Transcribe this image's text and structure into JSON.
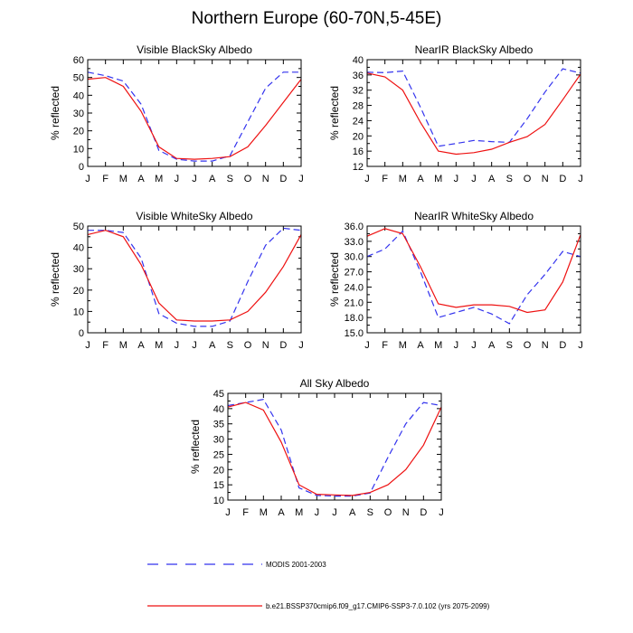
{
  "title": "Northern Europe (60-70N,5-45E)",
  "colors": {
    "modis": "#3333ee",
    "model": "#ee1111",
    "axis": "#000000"
  },
  "legend": {
    "modis": "MODIS 2001-2003",
    "model": "b.e21.BSSP370cmip6.f09_g17.CMIP6-SSP3-7.0.102 (yrs 2075-2099)"
  },
  "chart_data": [
    {
      "type": "line",
      "title": "Visible BlackSky Albedo",
      "ylabel": "% reflected",
      "categories": [
        "J",
        "F",
        "M",
        "A",
        "M",
        "J",
        "J",
        "A",
        "S",
        "O",
        "N",
        "D",
        "J"
      ],
      "ylim": [
        0,
        60
      ],
      "yticks": [
        "0",
        "10",
        "20",
        "30",
        "40",
        "50",
        "60"
      ],
      "series": [
        {
          "name": "MODIS 2001-2003",
          "style": "dashed",
          "values": [
            53,
            51,
            48,
            35,
            9,
            4,
            3,
            3,
            6,
            25,
            44,
            53,
            53
          ]
        },
        {
          "name": "b.e21.BSSP370cmip6.f09_g17.CMIP6-SSP3-7.0.102 (yrs 2075-2099)",
          "style": "solid",
          "values": [
            49,
            50,
            45,
            31,
            11,
            4.5,
            4,
            4.5,
            5.5,
            11,
            23,
            36,
            49
          ]
        }
      ]
    },
    {
      "type": "line",
      "title": "NearIR BlackSky Albedo",
      "ylabel": "% reflected",
      "categories": [
        "J",
        "F",
        "M",
        "A",
        "M",
        "J",
        "J",
        "A",
        "S",
        "O",
        "N",
        "D",
        "J"
      ],
      "ylim": [
        12,
        40
      ],
      "yticks": [
        "12",
        "16",
        "20",
        "24",
        "28",
        "32",
        "36",
        "40"
      ],
      "series": [
        {
          "name": "MODIS 2001-2003",
          "style": "dashed",
          "values": [
            36.7,
            36.6,
            37.0,
            27.5,
            17.3,
            18.0,
            18.8,
            18.5,
            18.3,
            24.5,
            31.5,
            37.6,
            36.5
          ]
        },
        {
          "name": "b.e21.BSSP370cmip6.f09_g17.CMIP6-SSP3-7.0.102 (yrs 2075-2099)",
          "style": "solid",
          "values": [
            36.5,
            35.5,
            32.0,
            23.5,
            16.0,
            15.2,
            15.6,
            16.5,
            18.3,
            19.8,
            23.0,
            29.5,
            36.2
          ]
        }
      ]
    },
    {
      "type": "line",
      "title": "Visible WhiteSky Albedo",
      "ylabel": "% reflected",
      "categories": [
        "J",
        "F",
        "M",
        "A",
        "M",
        "J",
        "J",
        "A",
        "S",
        "O",
        "N",
        "D",
        "J"
      ],
      "ylim": [
        0,
        50
      ],
      "yticks": [
        "0",
        "10",
        "20",
        "30",
        "40",
        "50"
      ],
      "series": [
        {
          "name": "MODIS 2001-2003",
          "style": "dashed",
          "values": [
            48,
            48,
            47,
            35,
            9,
            4.5,
            3,
            3,
            5.5,
            24,
            41,
            49,
            48
          ]
        },
        {
          "name": "b.e21.BSSP370cmip6.f09_g17.CMIP6-SSP3-7.0.102 (yrs 2075-2099)",
          "style": "solid",
          "values": [
            46,
            48,
            45,
            32,
            14,
            6,
            5.5,
            5.5,
            6,
            10,
            19,
            31,
            46
          ]
        }
      ]
    },
    {
      "type": "line",
      "title": "NearIR WhiteSky Albedo",
      "ylabel": "% reflected",
      "categories": [
        "J",
        "F",
        "M",
        "A",
        "M",
        "J",
        "J",
        "A",
        "S",
        "O",
        "N",
        "D",
        "J"
      ],
      "ylim": [
        15,
        36
      ],
      "yticks": [
        "15.0",
        "18.0",
        "21.0",
        "24.0",
        "27.0",
        "30.0",
        "33.0",
        "36.0"
      ],
      "series": [
        {
          "name": "MODIS 2001-2003",
          "style": "dashed",
          "values": [
            30.0,
            31.5,
            35.0,
            27.0,
            18.0,
            19.0,
            20.0,
            18.7,
            16.8,
            22.5,
            26.5,
            31.0,
            30.0
          ]
        },
        {
          "name": "b.e21.BSSP370cmip6.f09_g17.CMIP6-SSP3-7.0.102 (yrs 2075-2099)",
          "style": "solid",
          "values": [
            34.0,
            35.5,
            34.5,
            28.0,
            20.7,
            20.0,
            20.5,
            20.5,
            20.2,
            19.0,
            19.5,
            25.0,
            34.3
          ]
        }
      ]
    },
    {
      "type": "line",
      "title": "All Sky Albedo",
      "ylabel": "% reflected",
      "categories": [
        "J",
        "F",
        "M",
        "A",
        "M",
        "J",
        "J",
        "A",
        "S",
        "O",
        "N",
        "D",
        "J"
      ],
      "ylim": [
        10,
        45
      ],
      "yticks": [
        "10",
        "15",
        "20",
        "25",
        "30",
        "35",
        "40",
        "45"
      ],
      "series": [
        {
          "name": "MODIS 2001-2003",
          "style": "dashed",
          "values": [
            41,
            42,
            43,
            33,
            14,
            11.5,
            11.3,
            11.3,
            12.3,
            24,
            35,
            42,
            41
          ]
        },
        {
          "name": "b.e21.BSSP370cmip6.f09_g17.CMIP6-SSP3-7.0.102 (yrs 2075-2099)",
          "style": "solid",
          "values": [
            40.5,
            42,
            39.5,
            29,
            15,
            11.9,
            11.7,
            11.5,
            12.5,
            15,
            20,
            28,
            40.5
          ]
        }
      ]
    }
  ]
}
